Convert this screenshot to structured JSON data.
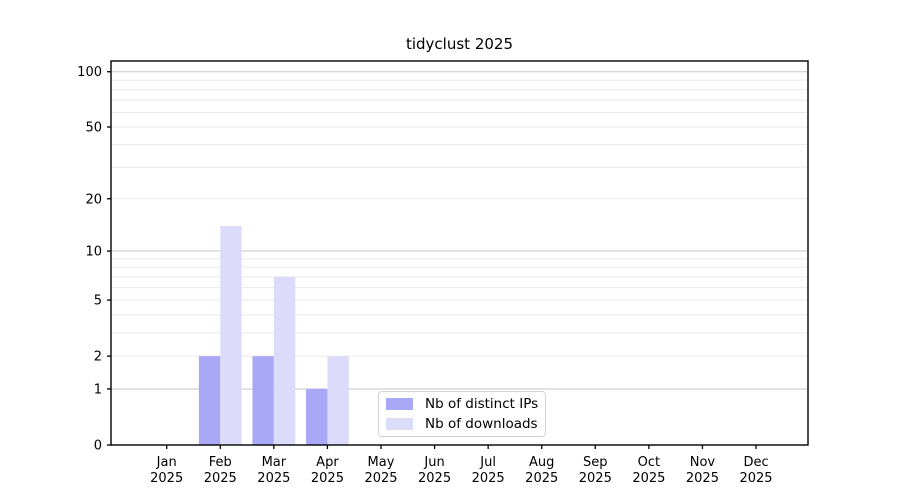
{
  "title": "tidyclust 2025",
  "colors": {
    "ips": "#a8a8f6",
    "downloads": "#dcdcfa",
    "grid_decade": "#c6c6c6",
    "grid_minor": "#eaeaea",
    "axis": "#000000",
    "text": "#000000",
    "legend_border": "#d4d4d4",
    "background": "#ffffff"
  },
  "legend": {
    "items": [
      {
        "label": "Nb of distinct IPs",
        "color_key": "ips"
      },
      {
        "label": "Nb of downloads",
        "color_key": "downloads"
      }
    ]
  },
  "chart_data": {
    "type": "bar",
    "title": "tidyclust 2025",
    "categories": [
      "Jan",
      "Feb",
      "Mar",
      "Apr",
      "May",
      "Jun",
      "Jul",
      "Aug",
      "Sep",
      "Oct",
      "Nov",
      "Dec"
    ],
    "year": "2025",
    "series": [
      {
        "name": "Nb of distinct IPs",
        "color_key": "ips",
        "values": [
          0,
          2,
          2,
          1,
          0,
          0,
          0,
          0,
          0,
          0,
          0,
          0
        ]
      },
      {
        "name": "Nb of downloads",
        "color_key": "downloads",
        "values": [
          0,
          14,
          7,
          2,
          0,
          0,
          0,
          0,
          0,
          0,
          0,
          0
        ]
      }
    ],
    "xlabel": "",
    "ylabel": "",
    "y_axis": {
      "scale": "log1p",
      "major_ticks": [
        0,
        1,
        2,
        5,
        10,
        20,
        50,
        100
      ],
      "decade_gridlines": [
        1,
        10,
        100
      ],
      "minor_gridlines": [
        2,
        3,
        4,
        5,
        6,
        7,
        8,
        9,
        20,
        30,
        40,
        50,
        60,
        70,
        80,
        90
      ],
      "ylim": [
        0,
        116
      ]
    },
    "grid": "horizontal",
    "legend_position": "lower center"
  }
}
